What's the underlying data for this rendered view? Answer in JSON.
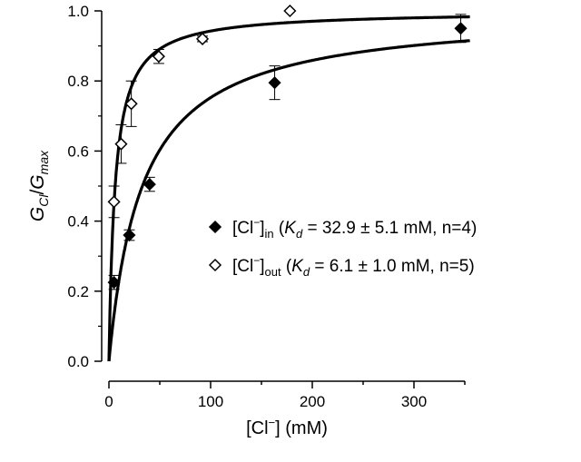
{
  "chart_data": {
    "type": "scatter",
    "xlabel": "[Cl⁻] (mM)",
    "ylabel": "G_Cl/G_max",
    "xlim": [
      0,
      350
    ],
    "ylim": [
      0,
      1.0
    ],
    "x_ticks": [
      "0",
      "100",
      "200",
      "300"
    ],
    "y_ticks": [
      "0.0",
      "0.2",
      "0.4",
      "0.6",
      "0.8",
      "1.0"
    ],
    "grid": false,
    "legend_placement": "center-right",
    "series": [
      {
        "name": "[Cl⁻]in (Kd = 32.9 ± 5.1 mM, n=4)",
        "label_main": "[Cl",
        "label_sup": "−",
        "label_close": "]",
        "label_sub": "in",
        "label_kd": "K",
        "label_kd_sub": "d",
        "label_rest": " = 32.9 ± 5.1 mM, n=4)",
        "marker": "filled-diamond",
        "kd": 32.9,
        "x": [
          5,
          20,
          40,
          163,
          346
        ],
        "y": [
          0.225,
          0.36,
          0.505,
          0.795,
          0.95
        ],
        "err": [
          0.02,
          0.015,
          0.02,
          0.048,
          0.04
        ]
      },
      {
        "name": "[Cl⁻]out (Kd = 6.1 ± 1.0 mM, n=5)",
        "label_main": "[Cl",
        "label_sup": "−",
        "label_close": "]",
        "label_sub": "out",
        "label_kd": "K",
        "label_kd_sub": "d",
        "label_rest": " = 6.1 ± 1.0 mM, n=5)",
        "marker": "open-diamond",
        "kd": 6.1,
        "x": [
          5,
          12,
          22,
          49,
          92,
          178
        ],
        "y": [
          0.455,
          0.62,
          0.735,
          0.87,
          0.92,
          1.0
        ],
        "err": [
          0.045,
          0.055,
          0.065,
          0.02,
          0.008,
          0
        ]
      }
    ]
  }
}
